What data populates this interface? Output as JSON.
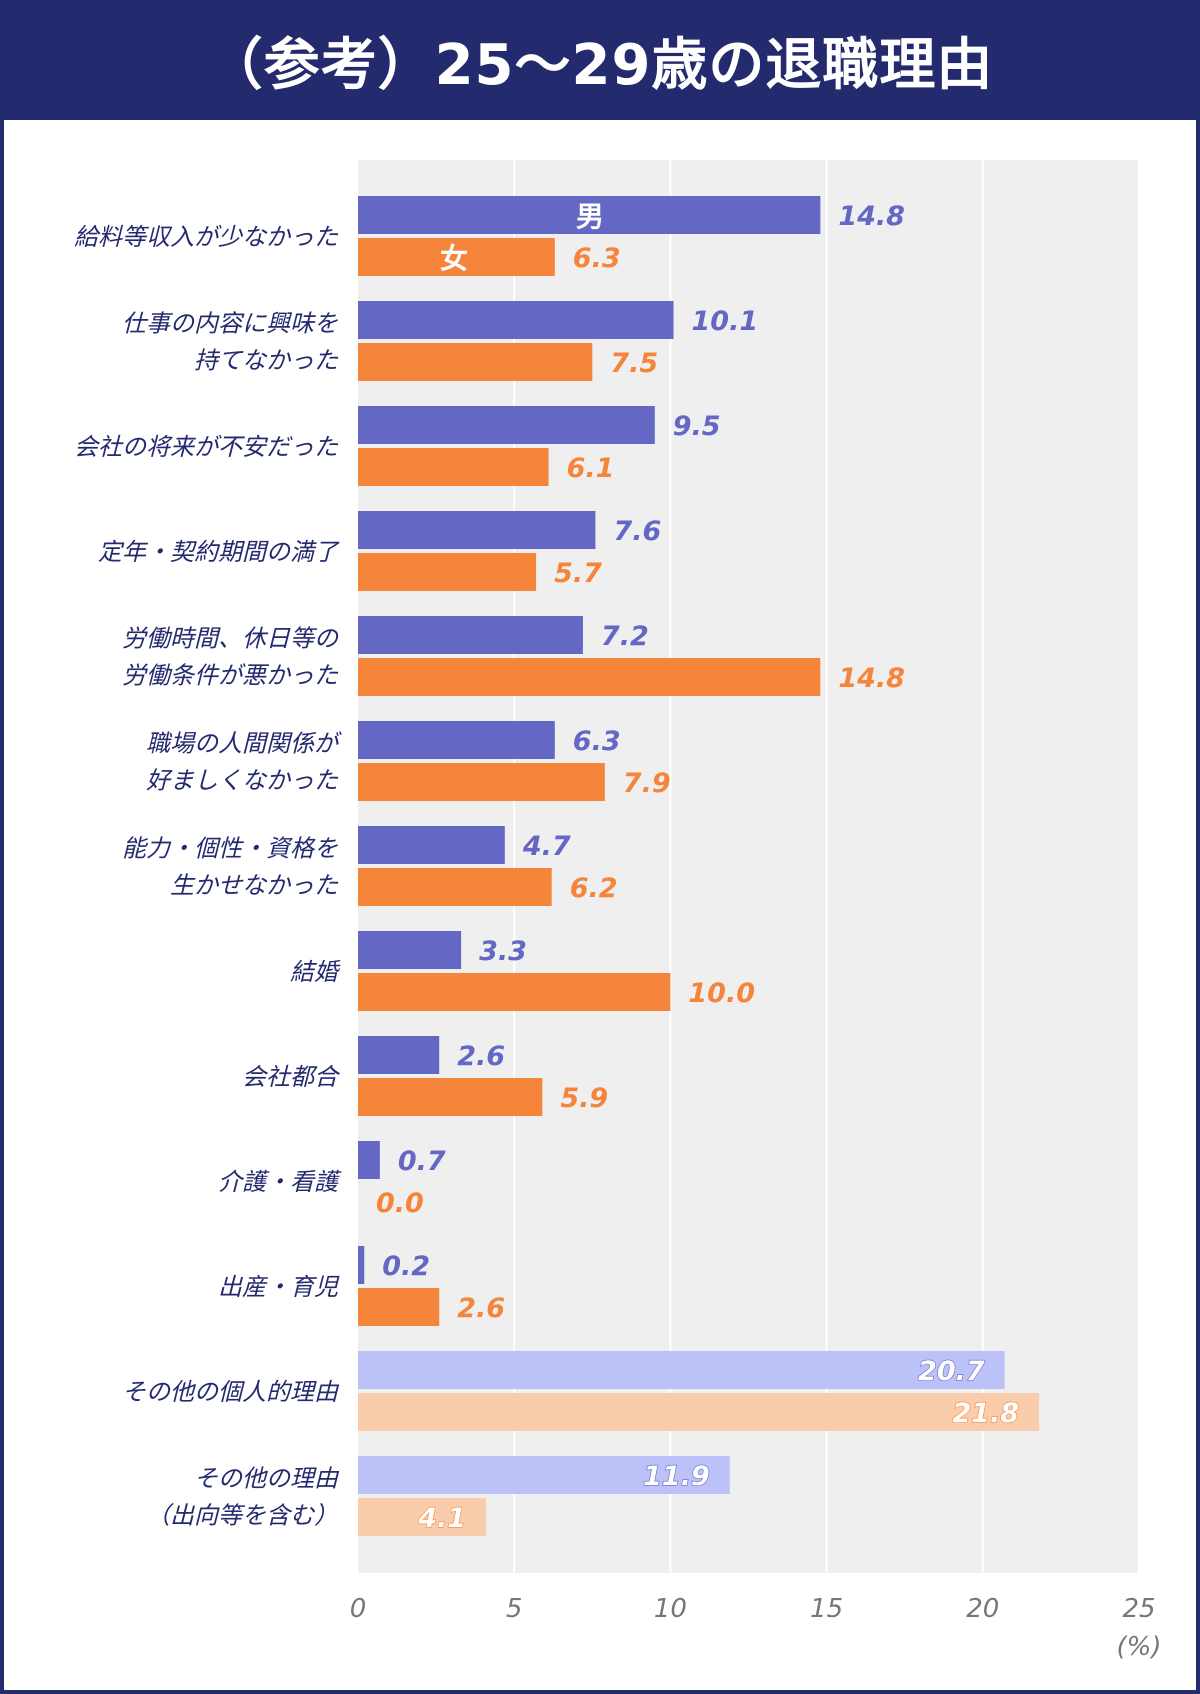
{
  "colors": {
    "header_bg": "#242a6e",
    "male": "#6468c4",
    "female": "#f5853a",
    "male_light": "#bcc1f7",
    "female_light": "#f9ccac",
    "plot_bg": "#efefef",
    "label_text": "#242a6e",
    "tick_text": "#777777"
  },
  "chart_data": {
    "type": "bar",
    "orientation": "horizontal",
    "title": "（参考）25～29歳の退職理由",
    "unit": "(%)",
    "xlim": [
      0,
      25
    ],
    "ticks": [
      0,
      5,
      10,
      15,
      20,
      25
    ],
    "grid": true,
    "legend_placement": "inside-first-bars",
    "categories": [
      "給料等収入が少なかった",
      "仕事の内容に興味を\n持てなかった",
      "会社の将来が不安だった",
      "定年・契約期間の満了",
      "労働時間、休日等の\n労働条件が悪かった",
      "職場の人間関係が\n好ましくなかった",
      "能力・個性・資格を\n生かせなかった",
      "結婚",
      "会社都合",
      "介護・看護",
      "出産・育児",
      "その他の個人的理由",
      "その他の理由\n（出向等を含む）"
    ],
    "light_categories": [
      11,
      12
    ],
    "series": [
      {
        "name": "男",
        "values": [
          14.8,
          10.1,
          9.5,
          7.6,
          7.2,
          6.3,
          4.7,
          3.3,
          2.6,
          0.7,
          0.2,
          20.7,
          11.9
        ],
        "labels": [
          "14.8",
          "10.1",
          "9.5",
          "7.6",
          "7.2",
          "6.3",
          "4.7",
          "3.3",
          "2.6",
          "0.7",
          "0.2",
          "20.7",
          "11.9"
        ]
      },
      {
        "name": "女",
        "values": [
          6.3,
          7.5,
          6.1,
          5.7,
          14.8,
          7.9,
          6.2,
          10.0,
          5.9,
          0.0,
          2.6,
          21.8,
          4.1
        ],
        "labels": [
          "6.3",
          "7.5",
          "6.1",
          "5.7",
          "14.8",
          "7.9",
          "6.2",
          "10.0",
          "5.9",
          "0.0",
          "2.6",
          "21.8",
          "4.1"
        ]
      }
    ]
  }
}
